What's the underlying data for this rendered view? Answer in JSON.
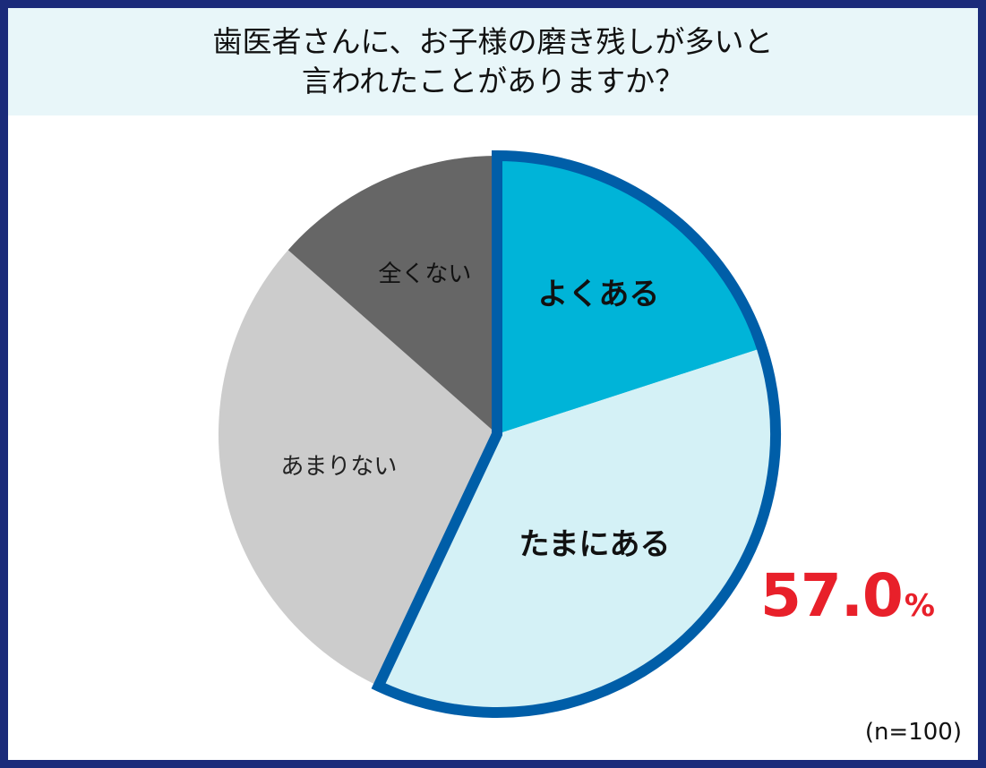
{
  "chart_data": {
    "type": "pie",
    "title_lines": [
      "歯医者さんに、お子様の磨き残しが多いと",
      "言われたことがありますか？"
    ],
    "categories": [
      "よくある",
      "たまにある",
      "あまりない",
      "全くない"
    ],
    "values": [
      20.0,
      37.0,
      29.5,
      13.5
    ],
    "colors": [
      "#00b4d8",
      "#d4f1f6",
      "#cccccc",
      "#666666"
    ],
    "label_colors": [
      "#111111",
      "#111111",
      "#222222",
      "#111111"
    ],
    "label_bold": [
      true,
      true,
      false,
      false
    ],
    "highlight": {
      "categories": [
        "よくある",
        "たまにある"
      ],
      "outline_color": "#005ea8",
      "value": "57.0",
      "unit": "%",
      "color": "#e8202a"
    },
    "start_angle": "12 o'clock",
    "direction": "clockwise",
    "sample_size": "(n=100)"
  }
}
